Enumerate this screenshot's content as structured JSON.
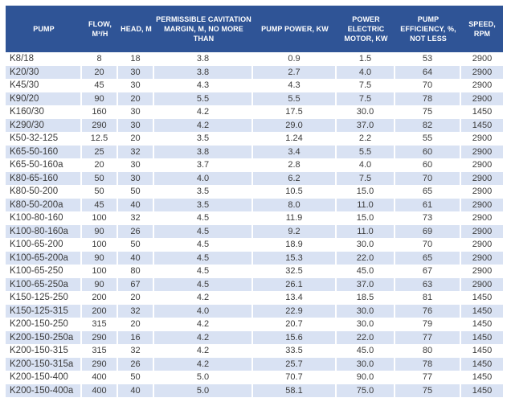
{
  "colors": {
    "header_bg": "#2F5496",
    "header_text": "#FFFFFF",
    "row_bg": "#FFFFFF",
    "row_alt_bg": "#D9E2F3",
    "body_text": "#3B3B3B"
  },
  "chart_data": {
    "type": "table",
    "columns": [
      "PUMP",
      "FLOW, M³/H",
      "HEAD, M",
      "PERMISSIBLE CAVITATION MARGIN, M, NO MORE THAN",
      "PUMP POWER, KW",
      "POWER ELECTRIC MOTOR, KW",
      "PUMP EFFICIENCY, %, NOT LESS",
      "SPEED, RPM"
    ],
    "rows": [
      [
        "K8/18",
        "8",
        "18",
        "3.8",
        "0.9",
        "1.5",
        "53",
        "2900"
      ],
      [
        "K20/30",
        "20",
        "30",
        "3.8",
        "2.7",
        "4.0",
        "64",
        "2900"
      ],
      [
        "K45/30",
        "45",
        "30",
        "4.3",
        "4.3",
        "7.5",
        "70",
        "2900"
      ],
      [
        "K90/20",
        "90",
        "20",
        "5.5",
        "5.5",
        "7.5",
        "78",
        "2900"
      ],
      [
        "K160/30",
        "160",
        "30",
        "4.2",
        "17.5",
        "30.0",
        "75",
        "1450"
      ],
      [
        "K290/30",
        "290",
        "30",
        "4.2",
        "29.0",
        "37.0",
        "82",
        "1450"
      ],
      [
        "K50-32-125",
        "12.5",
        "20",
        "3.5",
        "1.24",
        "2.2",
        "55",
        "2900"
      ],
      [
        "K65-50-160",
        "25",
        "32",
        "3.8",
        "3.4",
        "5.5",
        "60",
        "2900"
      ],
      [
        "K65-50-160a",
        "20",
        "30",
        "3.7",
        "2.8",
        "4.0",
        "60",
        "2900"
      ],
      [
        "K80-65-160",
        "50",
        "30",
        "4.0",
        "6.2",
        "7.5",
        "70",
        "2900"
      ],
      [
        "K80-50-200",
        "50",
        "50",
        "3.5",
        "10.5",
        "15.0",
        "65",
        "2900"
      ],
      [
        "K80-50-200a",
        "45",
        "40",
        "3.5",
        "8.0",
        "11.0",
        "61",
        "2900"
      ],
      [
        "K100-80-160",
        "100",
        "32",
        "4.5",
        "11.9",
        "15.0",
        "73",
        "2900"
      ],
      [
        "K100-80-160a",
        "90",
        "26",
        "4.5",
        "9.2",
        "11.0",
        "69",
        "2900"
      ],
      [
        "K100-65-200",
        "100",
        "50",
        "4.5",
        "18.9",
        "30.0",
        "70",
        "2900"
      ],
      [
        "K100-65-200a",
        "90",
        "40",
        "4.5",
        "15.3",
        "22.0",
        "65",
        "2900"
      ],
      [
        "K100-65-250",
        "100",
        "80",
        "4.5",
        "32.5",
        "45.0",
        "67",
        "2900"
      ],
      [
        "K100-65-250a",
        "90",
        "67",
        "4.5",
        "26.1",
        "37.0",
        "63",
        "2900"
      ],
      [
        "K150-125-250",
        "200",
        "20",
        "4.2",
        "13.4",
        "18.5",
        "81",
        "1450"
      ],
      [
        "K150-125-315",
        "200",
        "32",
        "4.0",
        "22.9",
        "30.0",
        "76",
        "1450"
      ],
      [
        "K200-150-250",
        "315",
        "20",
        "4.2",
        "20.7",
        "30.0",
        "79",
        "1450"
      ],
      [
        "K200-150-250a",
        "290",
        "16",
        "4.2",
        "15.6",
        "22.0",
        "77",
        "1450"
      ],
      [
        "K200-150-315",
        "315",
        "32",
        "4.2",
        "33.5",
        "45.0",
        "80",
        "1450"
      ],
      [
        "K200-150-315a",
        "290",
        "26",
        "4.2",
        "25.7",
        "30.0",
        "78",
        "1450"
      ],
      [
        "K200-150-400",
        "400",
        "50",
        "5.0",
        "70.7",
        "90.0",
        "77",
        "1450"
      ],
      [
        "K200-150-400a",
        "400",
        "40",
        "5.0",
        "58.1",
        "75.0",
        "75",
        "1450"
      ]
    ]
  }
}
